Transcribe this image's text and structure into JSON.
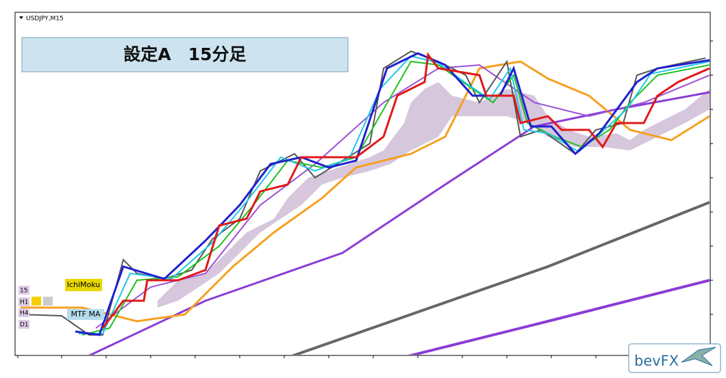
{
  "window": {
    "symbol": "USDJPY,M15"
  },
  "title": "設定A　15分足",
  "indicators": {
    "ichimoku": "IchiMoku",
    "mtf_ma": "MTF MA",
    "timeframes": [
      "15",
      "H1",
      "H4",
      "D1"
    ]
  },
  "logo": "bevFX"
}
